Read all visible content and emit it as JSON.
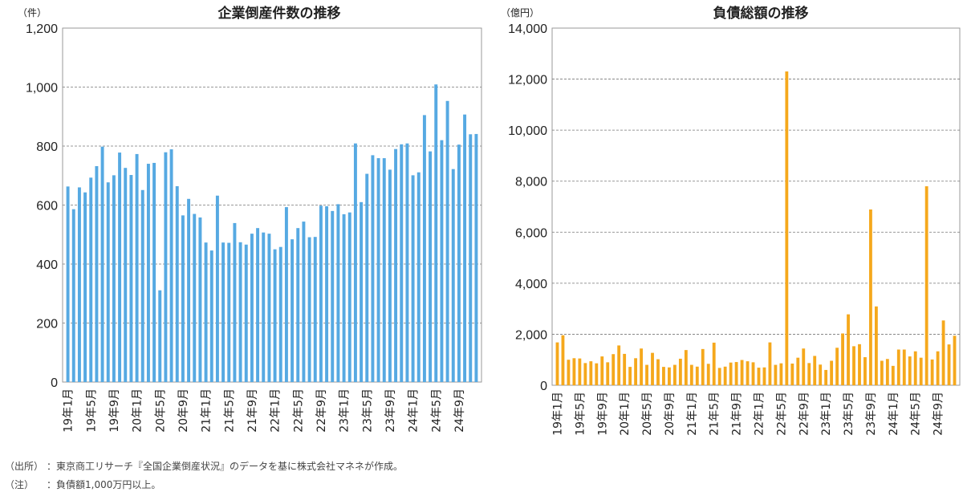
{
  "charts": [
    {
      "unit": "（件）",
      "color": "#56A9E2"
    },
    {
      "unit": "（億円）",
      "color": "#F5A81C"
    }
  ],
  "notes": {
    "source_tag": "（出所）",
    "source_text": "：東京商工リサーチ『全国企業倒産状況』のデータを基に株式会社マネネが作成。",
    "note_tag": "（注）",
    "note_text": "：負債額1,000万円以上。"
  },
  "chart_data": [
    {
      "type": "bar",
      "title": "企業倒産件数の推移",
      "ylim": [
        0,
        1200
      ],
      "yticks": [
        "0",
        "200",
        "400",
        "600",
        "800",
        "1,000",
        "1,200"
      ],
      "grid": true,
      "categories": [
        "19年1月",
        "19年2月",
        "19年3月",
        "19年4月",
        "19年5月",
        "19年6月",
        "19年7月",
        "19年8月",
        "19年9月",
        "19年10月",
        "19年11月",
        "19年12月",
        "20年1月",
        "20年2月",
        "20年3月",
        "20年4月",
        "20年5月",
        "20年6月",
        "20年7月",
        "20年8月",
        "20年9月",
        "20年10月",
        "20年11月",
        "20年12月",
        "21年1月",
        "21年2月",
        "21年3月",
        "21年4月",
        "21年5月",
        "21年6月",
        "21年7月",
        "21年8月",
        "21年9月",
        "21年10月",
        "21年11月",
        "21年12月",
        "22年1月",
        "22年2月",
        "22年3月",
        "22年4月",
        "22年5月",
        "22年6月",
        "22年7月",
        "22年8月",
        "22年9月",
        "22年10月",
        "22年11月",
        "22年12月",
        "23年1月",
        "23年2月",
        "23年3月",
        "23年4月",
        "23年5月",
        "23年6月",
        "23年7月",
        "23年8月",
        "23年9月",
        "23年10月",
        "23年11月",
        "23年12月",
        "24年1月",
        "24年2月",
        "24年3月",
        "24年4月",
        "24年5月",
        "24年6月",
        "24年7月",
        "24年8月",
        "24年9月",
        "24年10月",
        "24年11月",
        "24年12月"
      ],
      "tick_labels": [
        "19年1月",
        "19年5月",
        "19年9月",
        "20年1月",
        "20年5月",
        "20年9月",
        "21年1月",
        "21年5月",
        "21年9月",
        "22年1月",
        "22年5月",
        "22年9月",
        "23年1月",
        "23年5月",
        "23年9月",
        "24年1月",
        "24年5月",
        "24年9月"
      ],
      "values": [
        663,
        586,
        660,
        643,
        693,
        732,
        798,
        677,
        701,
        778,
        726,
        702,
        773,
        651,
        740,
        743,
        311,
        779,
        789,
        664,
        565,
        621,
        570,
        558,
        473,
        446,
        632,
        473,
        472,
        539,
        474,
        466,
        503,
        522,
        507,
        503,
        450,
        458,
        593,
        484,
        522,
        544,
        491,
        492,
        598,
        596,
        580,
        603,
        569,
        575,
        809,
        610,
        706,
        769,
        759,
        759,
        720,
        790,
        806,
        809,
        701,
        711,
        905,
        782,
        1009,
        820,
        953,
        722,
        805,
        907,
        840,
        841
      ]
    },
    {
      "type": "bar",
      "title": "負債総額の推移",
      "ylim": [
        0,
        14000
      ],
      "yticks": [
        "0",
        "2,000",
        "4,000",
        "6,000",
        "8,000",
        "10,000",
        "12,000",
        "14,000"
      ],
      "grid": true,
      "categories": [
        "19年1月",
        "19年2月",
        "19年3月",
        "19年4月",
        "19年5月",
        "19年6月",
        "19年7月",
        "19年8月",
        "19年9月",
        "19年10月",
        "19年11月",
        "19年12月",
        "20年1月",
        "20年2月",
        "20年3月",
        "20年4月",
        "20年5月",
        "20年6月",
        "20年7月",
        "20年8月",
        "20年9月",
        "20年10月",
        "20年11月",
        "20年12月",
        "21年1月",
        "21年2月",
        "21年3月",
        "21年4月",
        "21年5月",
        "21年6月",
        "21年7月",
        "21年8月",
        "21年9月",
        "21年10月",
        "21年11月",
        "21年12月",
        "22年1月",
        "22年2月",
        "22年3月",
        "22年4月",
        "22年5月",
        "22年6月",
        "22年7月",
        "22年8月",
        "22年9月",
        "22年10月",
        "22年11月",
        "22年12月",
        "23年1月",
        "23年2月",
        "23年3月",
        "23年4月",
        "23年5月",
        "23年6月",
        "23年7月",
        "23年8月",
        "23年9月",
        "23年10月",
        "23年11月",
        "23年12月",
        "24年1月",
        "24年2月",
        "24年3月",
        "24年4月",
        "24年5月",
        "24年6月",
        "24年7月",
        "24年8月",
        "24年9月",
        "24年10月",
        "24年11月",
        "24年12月"
      ],
      "tick_labels": [
        "19年1月",
        "19年5月",
        "19年9月",
        "20年1月",
        "20年5月",
        "20年9月",
        "21年1月",
        "21年5月",
        "21年9月",
        "22年1月",
        "22年5月",
        "22年9月",
        "23年1月",
        "23年5月",
        "23年9月",
        "24年1月",
        "24年5月",
        "24年9月"
      ],
      "values": [
        1680,
        1960,
        1000,
        1060,
        1050,
        870,
        940,
        860,
        1130,
        900,
        1220,
        1560,
        1230,
        720,
        1060,
        1440,
        800,
        1270,
        1020,
        720,
        700,
        800,
        1040,
        1380,
        800,
        730,
        1420,
        840,
        1670,
        680,
        730,
        890,
        910,
        990,
        940,
        900,
        690,
        700,
        1680,
        800,
        860,
        12300,
        850,
        1080,
        1440,
        870,
        1150,
        810,
        600,
        960,
        1470,
        2030,
        2780,
        1530,
        1610,
        1100,
        6890,
        3090,
        960,
        1030,
        760,
        1400,
        1400,
        1130,
        1330,
        1080,
        7800,
        1010,
        1330,
        2540,
        1600,
        1940
      ]
    }
  ]
}
